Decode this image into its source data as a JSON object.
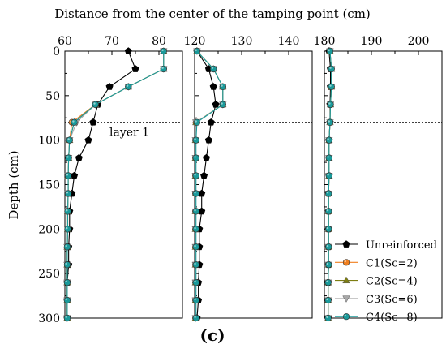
{
  "chart_data": {
    "type": "line",
    "title": "Distance from the center of the tamping point (cm)",
    "ylabel": "Depth (cm)",
    "panel_label": "(c)",
    "annotation": "layer 1",
    "layer_depth": 80,
    "ylim": [
      0,
      300
    ],
    "y_ticks": [
      0,
      50,
      100,
      150,
      200,
      250,
      300
    ],
    "depth": [
      0,
      20,
      40,
      60,
      80,
      100,
      120,
      140,
      160,
      180,
      200,
      220,
      240,
      260,
      280,
      300
    ],
    "panels": [
      {
        "xlim": [
          60,
          85
        ],
        "x_ticks": [
          60,
          70,
          80
        ],
        "series": [
          {
            "name": "Unreinforced",
            "values": [
              73.5,
              75.0,
              69.5,
              67.0,
              66.0,
              65.0,
              63.0,
              62.0,
              61.5,
              61.0,
              61.0,
              60.8,
              60.8,
              60.5,
              60.5,
              60.5
            ]
          },
          {
            "name": "C1(Sc=2)",
            "values": [
              81.0,
              81.0,
              73.5,
              66.5,
              61.5,
              61.0,
              60.8,
              60.7,
              60.7,
              60.6,
              60.6,
              60.5,
              60.5,
              60.5,
              60.5,
              60.5
            ]
          },
          {
            "name": "C2(Sc=4)",
            "values": [
              81.0,
              81.0,
              73.5,
              66.5,
              62.0,
              61.0,
              60.8,
              60.7,
              60.7,
              60.6,
              60.6,
              60.5,
              60.5,
              60.5,
              60.5,
              60.5
            ]
          },
          {
            "name": "C3(Sc=6)",
            "values": [
              81.0,
              81.0,
              73.5,
              66.5,
              62.5,
              61.0,
              60.8,
              60.7,
              60.7,
              60.6,
              60.6,
              60.5,
              60.5,
              60.5,
              60.5,
              60.5
            ]
          },
          {
            "name": "C4(Sc=8)",
            "values": [
              81.0,
              81.0,
              73.5,
              66.5,
              62.0,
              61.0,
              60.8,
              60.7,
              60.7,
              60.6,
              60.6,
              60.5,
              60.5,
              60.5,
              60.5,
              60.5
            ]
          }
        ]
      },
      {
        "xlim": [
          120,
          145
        ],
        "x_ticks": [
          120,
          130,
          140
        ],
        "series": [
          {
            "name": "Unreinforced",
            "values": [
              120.5,
              123.0,
              124.0,
              124.5,
              123.5,
              123.0,
              122.5,
              122.0,
              121.5,
              121.5,
              121.0,
              121.0,
              121.0,
              120.8,
              120.8,
              120.5
            ]
          },
          {
            "name": "C1(Sc=2)",
            "values": [
              120.5,
              124.0,
              126.0,
              126.0,
              120.3,
              120.2,
              120.2,
              120.2,
              120.2,
              120.2,
              120.2,
              120.2,
              120.2,
              120.2,
              120.2,
              120.2
            ]
          },
          {
            "name": "C2(Sc=4)",
            "values": [
              120.5,
              124.0,
              126.0,
              126.0,
              120.3,
              120.2,
              120.2,
              120.2,
              120.2,
              120.2,
              120.2,
              120.2,
              120.2,
              120.2,
              120.2,
              120.2
            ]
          },
          {
            "name": "C3(Sc=6)",
            "values": [
              120.5,
              124.0,
              126.0,
              126.0,
              120.3,
              120.2,
              120.2,
              120.2,
              120.2,
              120.2,
              120.2,
              120.2,
              120.2,
              120.2,
              120.2,
              120.2
            ]
          },
          {
            "name": "C4(Sc=8)",
            "values": [
              120.5,
              124.0,
              126.0,
              126.0,
              120.5,
              120.3,
              120.3,
              120.3,
              120.3,
              120.3,
              120.3,
              120.3,
              120.3,
              120.3,
              120.3,
              120.3
            ]
          }
        ]
      },
      {
        "xlim": [
          180,
          205
        ],
        "x_ticks": [
          180,
          190,
          200
        ],
        "series": [
          {
            "name": "Unreinforced",
            "values": [
              181.0,
              181.3,
              181.3,
              181.2,
              181.2,
              181.0,
              181.0,
              181.0,
              180.9,
              180.9,
              180.9,
              180.9,
              180.9,
              180.8,
              180.8,
              180.8
            ]
          },
          {
            "name": "C1(Sc=2)",
            "values": [
              181.2,
              181.5,
              181.5,
              181.3,
              181.2,
              181.0,
              181.0,
              181.0,
              180.9,
              180.9,
              180.9,
              180.9,
              180.9,
              180.8,
              180.8,
              180.8
            ]
          },
          {
            "name": "C2(Sc=4)",
            "values": [
              181.2,
              181.5,
              181.5,
              181.3,
              181.2,
              181.0,
              181.0,
              181.0,
              180.9,
              180.9,
              180.9,
              180.9,
              180.9,
              180.8,
              180.8,
              180.8
            ]
          },
          {
            "name": "C3(Sc=6)",
            "values": [
              181.2,
              181.5,
              181.5,
              181.3,
              181.2,
              181.0,
              181.0,
              181.0,
              180.9,
              180.9,
              180.9,
              180.9,
              180.9,
              180.8,
              180.8,
              180.8
            ]
          },
          {
            "name": "C4(Sc=8)",
            "values": [
              181.2,
              181.5,
              181.5,
              181.3,
              181.2,
              181.0,
              181.0,
              181.0,
              180.9,
              180.9,
              180.9,
              180.9,
              180.9,
              180.8,
              180.8,
              180.8
            ]
          }
        ]
      }
    ],
    "styles": [
      {
        "name": "Unreinforced",
        "color": "#000000",
        "marker": "pentagon-marker"
      },
      {
        "name": "C1(Sc=2)",
        "color": "#f07f1f",
        "marker": "circle-marker"
      },
      {
        "name": "C2(Sc=4)",
        "color": "#7e7e12",
        "marker": "triangle-up-marker"
      },
      {
        "name": "C3(Sc=6)",
        "color": "#a8a8a8",
        "marker": "triangle-down-marker"
      },
      {
        "name": "C4(Sc=8)",
        "color": "#1a9a9a",
        "marker": "circle-marker"
      }
    ],
    "legend_position": "bottom-right"
  }
}
